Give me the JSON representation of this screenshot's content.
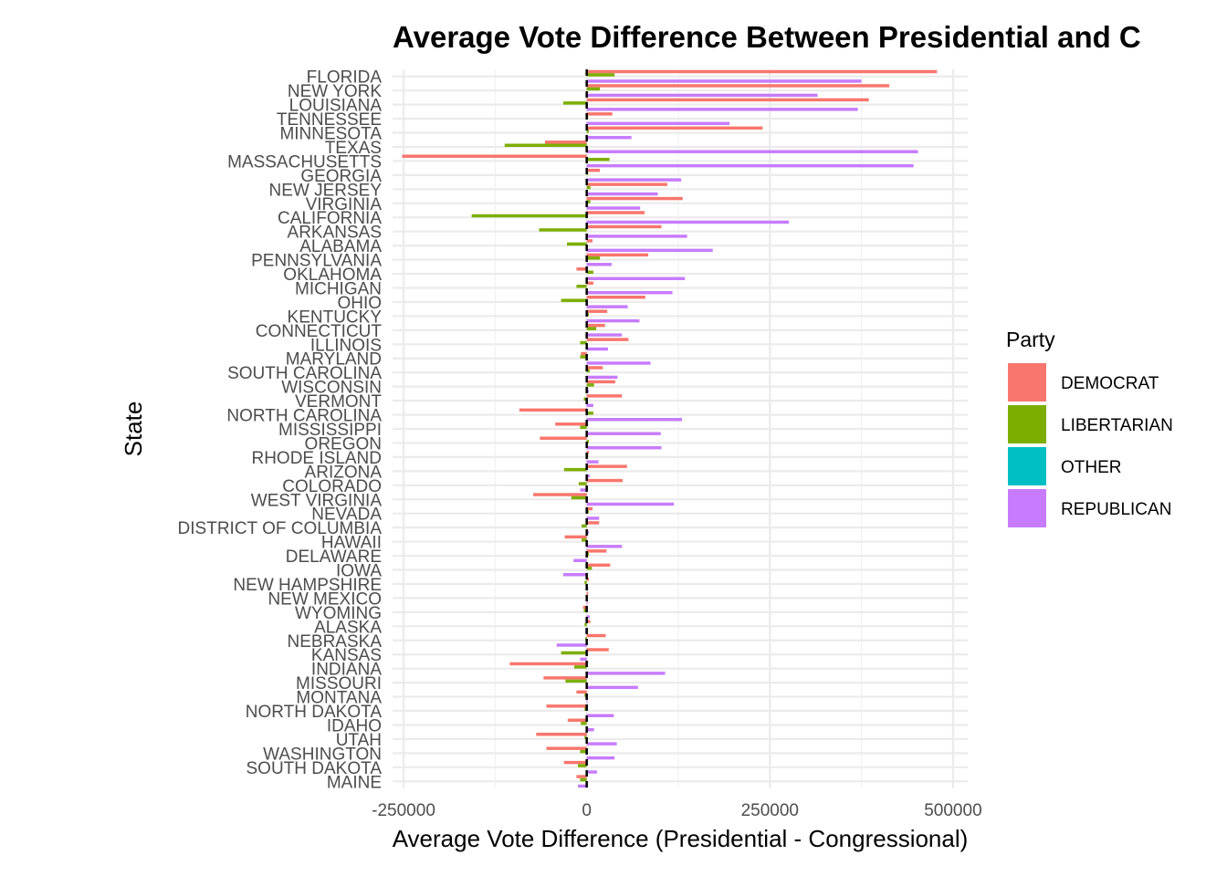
{
  "chart_data": {
    "type": "bar",
    "orientation": "horizontal",
    "title": "Average Vote Difference Between Presidential and C",
    "xlabel": "Average Vote Difference (Presidential - Congressional)",
    "ylabel": "State",
    "xlim": [
      -265000,
      520000
    ],
    "x_ticks": [
      -250000,
      0,
      250000,
      500000
    ],
    "x_tick_labels": [
      "-250000",
      "0",
      "250000",
      "500000"
    ],
    "grid": true,
    "reference_line": 0,
    "legend": {
      "title": "Party",
      "position": "right"
    },
    "categories": [
      "FLORIDA",
      "NEW YORK",
      "LOUISIANA",
      "TENNESSEE",
      "MINNESOTA",
      "TEXAS",
      "MASSACHUSETTS",
      "GEORGIA",
      "NEW JERSEY",
      "VIRGINIA",
      "CALIFORNIA",
      "ARKANSAS",
      "ALABAMA",
      "PENNSYLVANIA",
      "OKLAHOMA",
      "MICHIGAN",
      "OHIO",
      "KENTUCKY",
      "CONNECTICUT",
      "ILLINOIS",
      "MARYLAND",
      "SOUTH CAROLINA",
      "WISCONSIN",
      "VERMONT",
      "NORTH CAROLINA",
      "MISSISSIPPI",
      "OREGON",
      "RHODE ISLAND",
      "ARIZONA",
      "COLORADO",
      "WEST VIRGINIA",
      "NEVADA",
      "DISTRICT OF COLUMBIA",
      "HAWAII",
      "DELAWARE",
      "IOWA",
      "NEW HAMPSHIRE",
      "NEW MEXICO",
      "WYOMING",
      "ALASKA",
      "NEBRASKA",
      "KANSAS",
      "INDIANA",
      "MISSOURI",
      "MONTANA",
      "NORTH DAKOTA",
      "IDAHO",
      "UTAH",
      "WASHINGTON",
      "SOUTH DAKOTA",
      "MAINE"
    ],
    "series": [
      {
        "name": "DEMOCRAT",
        "color": "#F8766D",
        "values": [
          478000,
          413000,
          385000,
          35000,
          240000,
          -57000,
          -252000,
          18000,
          110000,
          131000,
          79000,
          102000,
          8000,
          84000,
          -14000,
          9000,
          80000,
          28000,
          25000,
          57000,
          -8000,
          22000,
          39000,
          48000,
          -92000,
          -43000,
          -64000,
          3000,
          55000,
          49000,
          -73000,
          8000,
          17000,
          -30000,
          27000,
          32000,
          3000,
          2000,
          -5000,
          5000,
          26000,
          30000,
          -105000,
          -59000,
          -14000,
          -55000,
          -26000,
          -69000,
          -55000,
          -31000,
          -14000
        ]
      },
      {
        "name": "LIBERTARIAN",
        "color": "#7CAE00",
        "values": [
          38000,
          18000,
          -32000,
          2000,
          3000,
          -112000,
          31000,
          2000,
          5000,
          5000,
          -157000,
          -65000,
          -27000,
          18000,
          9000,
          -14000,
          -35000,
          3000,
          13000,
          -9000,
          -9000,
          4000,
          10000,
          -4000,
          9000,
          -9000,
          3000,
          2000,
          -31000,
          -11000,
          -21000,
          3000,
          -7000,
          -7000,
          3000,
          7000,
          -3000,
          1000,
          -4000,
          -3000,
          -2000,
          -35000,
          -17000,
          -29000,
          -3000,
          -3000,
          -8000,
          -3000,
          -9000,
          -12000,
          -9000
        ]
      },
      {
        "name": "OTHER",
        "color": "#00BFC4",
        "values": [
          0,
          0,
          0,
          0,
          0,
          0,
          0,
          0,
          0,
          0,
          0,
          0,
          0,
          0,
          0,
          0,
          0,
          0,
          0,
          0,
          0,
          0,
          0,
          0,
          0,
          0,
          0,
          0,
          0,
          0,
          0,
          0,
          0,
          0,
          0,
          0,
          0,
          0,
          0,
          0,
          0,
          0,
          0,
          0,
          0,
          0,
          0,
          0,
          0,
          0,
          0
        ]
      },
      {
        "name": "REPUBLICAN",
        "color": "#C77CFF",
        "values": [
          375000,
          315000,
          370000,
          195000,
          61000,
          452000,
          446000,
          129000,
          97000,
          73000,
          276000,
          137000,
          172000,
          34000,
          134000,
          117000,
          56000,
          72000,
          48000,
          29000,
          87000,
          42000,
          3000,
          9000,
          130000,
          101000,
          102000,
          16000,
          4000,
          -9000,
          119000,
          17000,
          3000,
          48000,
          -18000,
          -32000,
          2000,
          1000,
          4000,
          -2000,
          -41000,
          -9000,
          107000,
          70000,
          1000,
          37000,
          10000,
          41000,
          38000,
          14000,
          -12000
        ]
      }
    ]
  }
}
